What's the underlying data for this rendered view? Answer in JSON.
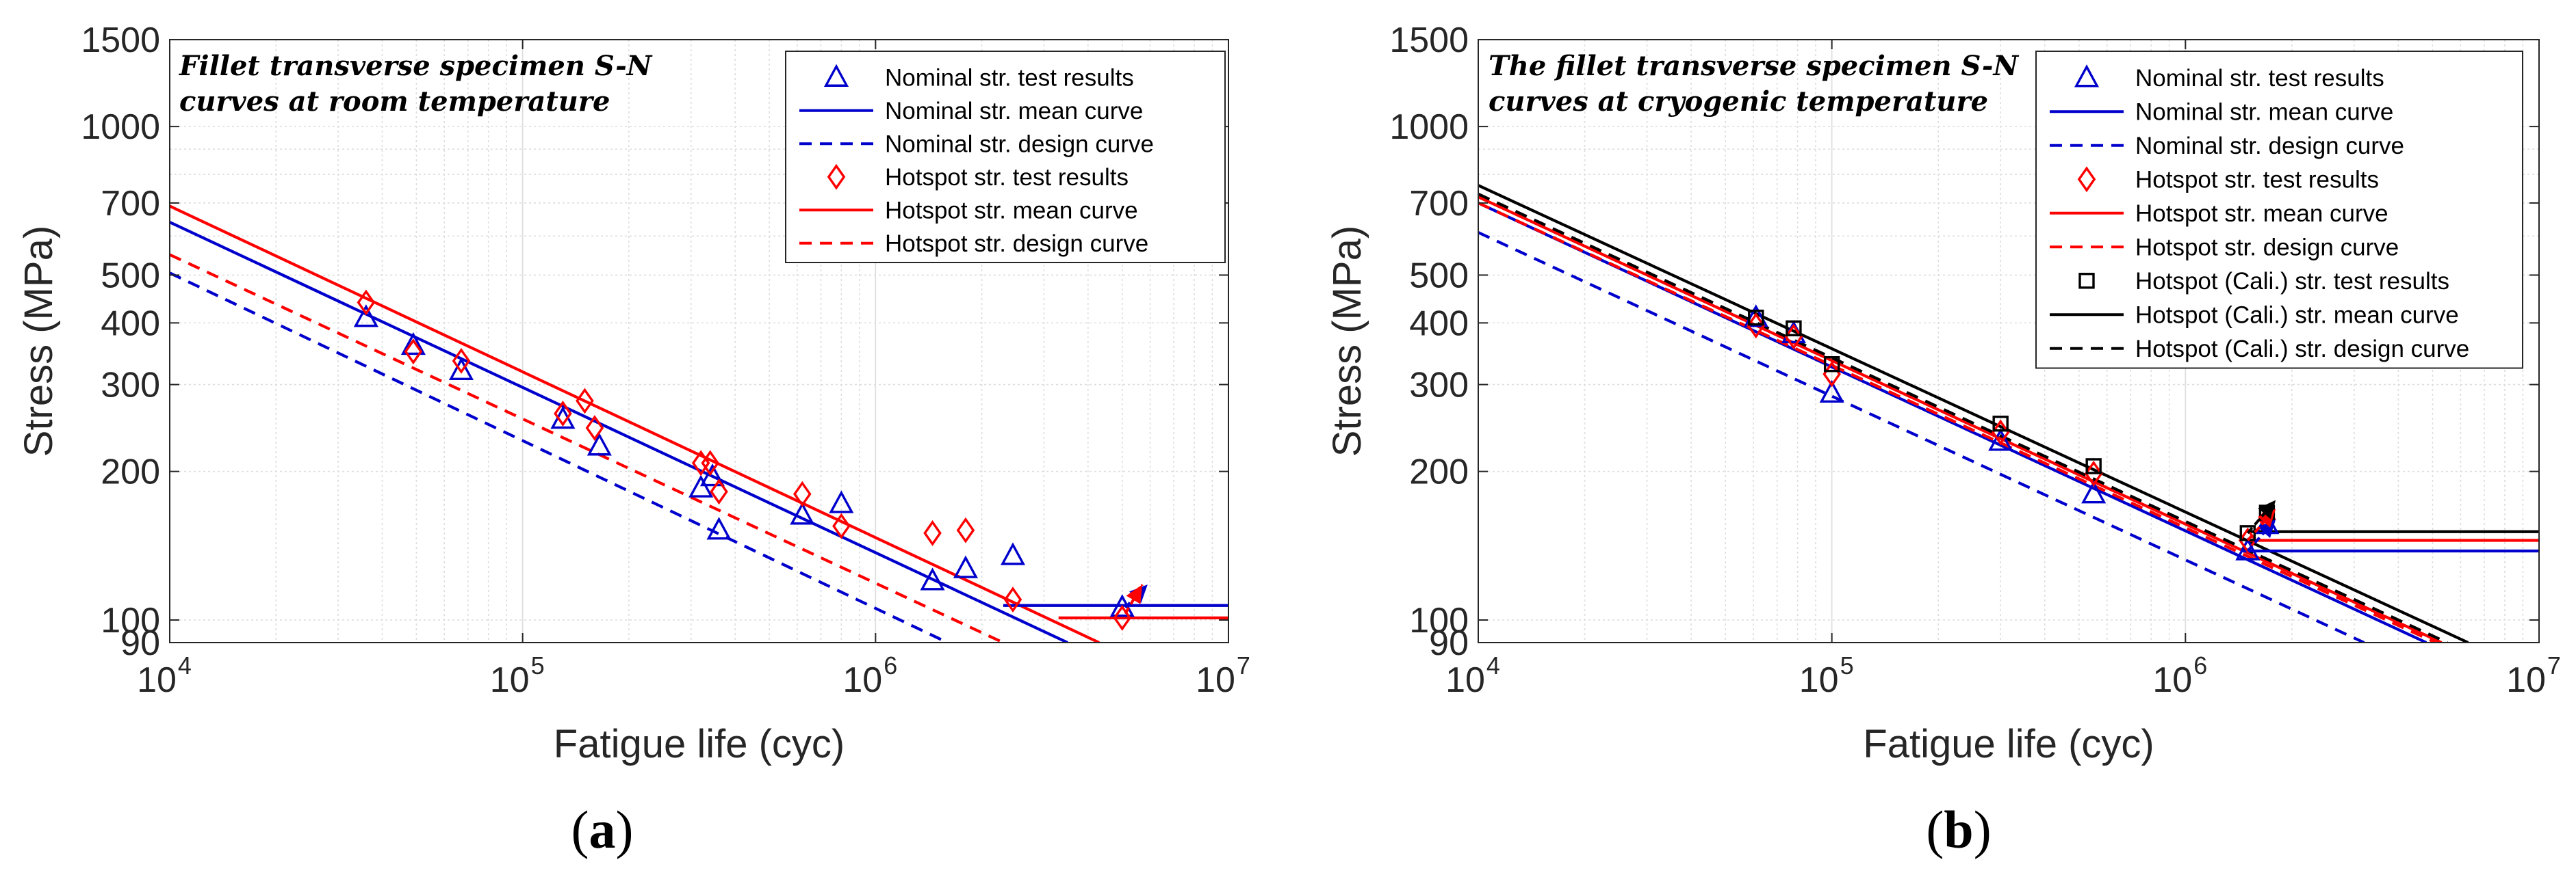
{
  "figure": {
    "panel_labels": [
      {
        "open": "(",
        "letter": "a",
        "close": ")"
      },
      {
        "open": "(",
        "letter": "b",
        "close": ")"
      }
    ]
  },
  "colors": {
    "nominal": "#0000CC",
    "hotspot": "#FF0000",
    "cali": "#000000",
    "grid": "#DDDDDD",
    "axis": "#262626"
  },
  "chart_data": [
    {
      "type": "scatter",
      "title_lines": [
        "Fillet transverse specimen S-N",
        "curves at room temperature"
      ],
      "xlabel": "Fatigue life (cyc)",
      "ylabel": "Stress (MPa)",
      "xscale": "log",
      "yscale": "log",
      "xlim": [
        10000,
        10000000
      ],
      "ylim": [
        90,
        1500
      ],
      "xticks": [
        {
          "base": "10",
          "exp": "4",
          "value": 10000
        },
        {
          "base": "10",
          "exp": "5",
          "value": 100000
        },
        {
          "base": "10",
          "exp": "6",
          "value": 1000000
        },
        {
          "base": "10",
          "exp": "7",
          "value": 10000000
        }
      ],
      "yticks": [
        90,
        100,
        200,
        300,
        400,
        500,
        700,
        1000,
        1500
      ],
      "grid": true,
      "legend_position": "top-right",
      "series": [
        {
          "name": "Nominal str. test results",
          "kind": "points",
          "marker": "triangle",
          "color": "#0000CC",
          "x": [
            36000,
            49000,
            67000,
            130000,
            165000,
            320000,
            345000,
            360000,
            620000,
            800000,
            1450000,
            1800000,
            2450000,
            5000000
          ],
          "y": [
            410,
            360,
            320,
            255,
            225,
            185,
            195,
            152,
            163,
            172,
            120,
            127,
            135,
            106
          ]
        },
        {
          "name": "Nominal str. mean curve",
          "kind": "line",
          "style": "solid",
          "color": "#0000CC",
          "x": [
            10000,
            3500000
          ],
          "y": [
            640,
            90
          ]
        },
        {
          "name": "Nominal str. design curve",
          "kind": "line",
          "style": "dashed",
          "color": "#0000CC",
          "x": [
            10000,
            1600000
          ],
          "y": [
            505,
            90
          ]
        },
        {
          "name": "Hotspot str. test results",
          "kind": "points",
          "marker": "diamond",
          "color": "#FF0000",
          "x": [
            36000,
            49000,
            67000,
            130000,
            150000,
            160000,
            320000,
            340000,
            360000,
            620000,
            800000,
            1450000,
            1800000,
            2450000,
            5000000
          ],
          "y": [
            440,
            350,
            335,
            262,
            278,
            245,
            208,
            208,
            182,
            180,
            155,
            150,
            152,
            110,
            101
          ]
        },
        {
          "name": "Hotspot str. mean curve",
          "kind": "line",
          "style": "solid",
          "color": "#FF0000",
          "x": [
            10000,
            4300000
          ],
          "y": [
            690,
            90
          ]
        },
        {
          "name": "Hotspot str. design curve",
          "kind": "line",
          "style": "dashed",
          "color": "#FF0000",
          "x": [
            10000,
            2300000
          ],
          "y": [
            550,
            90
          ]
        }
      ],
      "horizontal_limits": [
        {
          "color": "#0000CC",
          "x_from": 2300000,
          "y": 107
        },
        {
          "color": "#FF0000",
          "x_from": 3300000,
          "y": 101
        }
      ],
      "runout_arrows": [
        {
          "color": "#0000CC",
          "x": [
            5100000,
            5900000
          ],
          "y": [
            106,
            118
          ]
        },
        {
          "color": "#FF0000",
          "x": [
            5100000,
            5700000
          ],
          "y": [
            103,
            118
          ]
        }
      ]
    },
    {
      "type": "scatter",
      "title_lines": [
        "The fillet transverse specimen S-N",
        "curves at cryogenic temperature"
      ],
      "xlabel": "Fatigue life (cyc)",
      "ylabel": "Stress (MPa)",
      "xscale": "log",
      "yscale": "log",
      "xlim": [
        10000,
        10000000
      ],
      "ylim": [
        90,
        1500
      ],
      "xticks": [
        {
          "base": "10",
          "exp": "4",
          "value": 10000
        },
        {
          "base": "10",
          "exp": "5",
          "value": 100000
        },
        {
          "base": "10",
          "exp": "6",
          "value": 1000000
        },
        {
          "base": "10",
          "exp": "7",
          "value": 10000000
        }
      ],
      "yticks": [
        90,
        100,
        200,
        300,
        400,
        500,
        700,
        1000,
        1500
      ],
      "grid": true,
      "legend_position": "top-right",
      "series": [
        {
          "name": "Nominal str. test results",
          "kind": "points",
          "marker": "triangle",
          "color": "#0000CC",
          "x": [
            61000,
            78000,
            100000,
            300000,
            550000,
            1500000,
            1700000
          ],
          "y": [
            410,
            380,
            288,
            230,
            180,
            138,
            156
          ]
        },
        {
          "name": "Nominal str. mean curve",
          "kind": "line",
          "style": "solid",
          "color": "#0000CC",
          "x": [
            10000,
            4800000
          ],
          "y": [
            700,
            90
          ]
        },
        {
          "name": "Nominal str. design curve",
          "kind": "line",
          "style": "dashed",
          "color": "#0000CC",
          "x": [
            10000,
            3200000
          ],
          "y": [
            610,
            90
          ]
        },
        {
          "name": "Hotspot str. test results",
          "kind": "points",
          "marker": "diamond",
          "color": "#FF0000",
          "x": [
            61000,
            78000,
            100000,
            300000,
            550000,
            1500000,
            1700000
          ],
          "y": [
            395,
            375,
            315,
            240,
            198,
            145,
            160
          ]
        },
        {
          "name": "Hotspot str. mean curve",
          "kind": "line",
          "style": "solid",
          "color": "#FF0000",
          "x": [
            10000,
            5300000
          ],
          "y": [
            720,
            90
          ]
        },
        {
          "name": "Hotspot str. design curve",
          "kind": "line",
          "style": "dashed",
          "color": "#FF0000",
          "x": [
            10000,
            5100000
          ],
          "y": [
            700,
            90
          ]
        },
        {
          "name": "Hotspot (Cali.) str. test results",
          "kind": "points",
          "marker": "square",
          "color": "#000000",
          "x": [
            61000,
            78000,
            100000,
            300000,
            550000,
            1500000,
            1700000
          ],
          "y": [
            410,
            390,
            330,
            250,
            205,
            150,
            165
          ]
        },
        {
          "name": "Hotspot (Cali.) str. mean curve",
          "kind": "line",
          "style": "solid",
          "color": "#000000",
          "x": [
            10000,
            6300000
          ],
          "y": [
            760,
            90
          ]
        },
        {
          "name": "Hotspot (Cali.) str. design curve",
          "kind": "line",
          "style": "dashed",
          "color": "#000000",
          "x": [
            10000,
            5500000
          ],
          "y": [
            730,
            90
          ]
        }
      ],
      "horizontal_limits": [
        {
          "color": "#0000CC",
          "x_from": 1450000,
          "y": 138
        },
        {
          "color": "#FF0000",
          "x_from": 1500000,
          "y": 145
        },
        {
          "color": "#000000",
          "x_from": 1500000,
          "y": 151
        }
      ],
      "runout_arrows": [
        {
          "color": "#0000CC",
          "x": [
            1500000,
            1800000
          ],
          "y": [
            138,
            160
          ]
        },
        {
          "color": "#FF0000",
          "x": [
            1500000,
            1800000
          ],
          "y": [
            145,
            168
          ]
        },
        {
          "color": "#000000",
          "x": [
            1500000,
            1800000
          ],
          "y": [
            150,
            175
          ]
        }
      ]
    }
  ]
}
